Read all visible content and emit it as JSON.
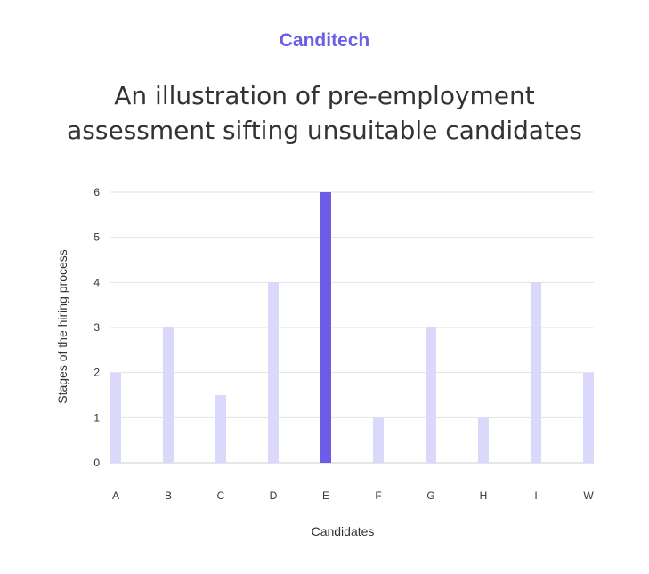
{
  "brand": {
    "name": "Canditech",
    "color": "#6c5ce7"
  },
  "title_lines": [
    "An illustration of pre-employment",
    "assessment sifting unsuitable candidates"
  ],
  "chart_data": {
    "type": "bar",
    "title": "An illustration of pre-employment assessment sifting unsuitable candidates",
    "xlabel": "Candidates",
    "ylabel": "Stages of the hiring process",
    "categories": [
      "A",
      "B",
      "C",
      "D",
      "E",
      "F",
      "G",
      "H",
      "I",
      "W"
    ],
    "values": [
      2,
      3,
      1.5,
      4,
      6,
      1,
      3,
      1,
      4,
      2
    ],
    "highlight": "E",
    "ylim": [
      0,
      6
    ],
    "yticks": [
      0,
      1,
      2,
      3,
      4,
      5,
      6
    ],
    "grid": true,
    "legend": "none",
    "colors": {
      "bar": "#dad8fb",
      "highlight": "#6c5ce7",
      "grid": "#e3e3e3",
      "axis": "#cccccc"
    }
  }
}
